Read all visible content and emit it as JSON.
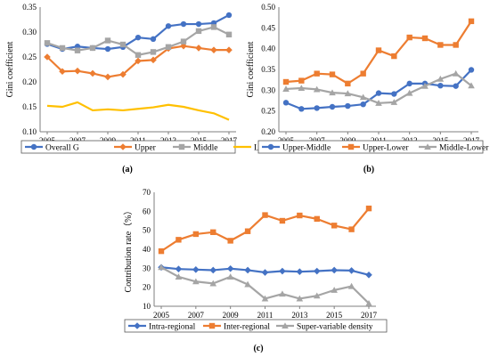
{
  "chart_data": [
    {
      "panel": "(a)",
      "type": "line",
      "ylabel": "Gini coefficient",
      "xlabel": "",
      "ylim": [
        0.1,
        0.35
      ],
      "yticks": [
        "0.10",
        "0.15",
        "0.20",
        "0.25",
        "0.30",
        "0.35"
      ],
      "xticks": [
        "2005",
        "2007",
        "2009",
        "2011",
        "2013",
        "2015",
        "2017"
      ],
      "x": [
        2005,
        2006,
        2007,
        2008,
        2009,
        2010,
        2011,
        2012,
        2013,
        2014,
        2015,
        2016,
        2017
      ],
      "grid": false,
      "legend_position": "bottom",
      "series": [
        {
          "name": "Overall G",
          "color": "#4472C4",
          "marker": "circle",
          "values": [
            0.276,
            0.266,
            0.271,
            0.268,
            0.266,
            0.27,
            0.289,
            0.286,
            0.312,
            0.316,
            0.316,
            0.318,
            0.334
          ]
        },
        {
          "name": "Upper",
          "color": "#ED7D31",
          "marker": "diamond",
          "values": [
            0.25,
            0.221,
            0.222,
            0.217,
            0.21,
            0.215,
            0.242,
            0.244,
            0.267,
            0.272,
            0.268,
            0.264,
            0.264
          ]
        },
        {
          "name": "Middle",
          "color": "#A5A5A5",
          "marker": "square",
          "values": [
            0.278,
            0.268,
            0.263,
            0.268,
            0.283,
            0.275,
            0.254,
            0.26,
            0.27,
            0.281,
            0.302,
            0.31,
            0.295
          ]
        },
        {
          "name": "Lower",
          "color": "#FFC000",
          "marker": "none",
          "values": [
            0.152,
            0.15,
            0.159,
            0.143,
            0.145,
            0.143,
            0.146,
            0.149,
            0.154,
            0.15,
            0.143,
            0.137,
            0.124
          ]
        }
      ]
    },
    {
      "panel": "(b)",
      "type": "line",
      "ylabel": "Gini coefficient",
      "xlabel": "",
      "ylim": [
        0.2,
        0.5
      ],
      "yticks": [
        "0.20",
        "0.25",
        "0.30",
        "0.35",
        "0.40",
        "0.45",
        "0.50"
      ],
      "xticks": [
        "2005",
        "2007",
        "2009",
        "2011",
        "2013",
        "2015",
        "2017"
      ],
      "x": [
        2005,
        2006,
        2007,
        2008,
        2009,
        2010,
        2011,
        2012,
        2013,
        2014,
        2015,
        2016,
        2017
      ],
      "grid": false,
      "legend_position": "bottom",
      "series": [
        {
          "name": "Upper-Middle",
          "color": "#4472C4",
          "marker": "circle",
          "values": [
            0.27,
            0.255,
            0.257,
            0.26,
            0.262,
            0.266,
            0.293,
            0.291,
            0.316,
            0.316,
            0.311,
            0.31,
            0.349
          ]
        },
        {
          "name": "Upper-Lower",
          "color": "#ED7D31",
          "marker": "square",
          "values": [
            0.32,
            0.323,
            0.34,
            0.338,
            0.316,
            0.34,
            0.396,
            0.382,
            0.427,
            0.425,
            0.409,
            0.409,
            0.466
          ]
        },
        {
          "name": "Middle-Lower",
          "color": "#A5A5A5",
          "marker": "triangle",
          "values": [
            0.303,
            0.305,
            0.302,
            0.294,
            0.292,
            0.283,
            0.269,
            0.271,
            0.293,
            0.31,
            0.327,
            0.34,
            0.311
          ]
        }
      ]
    },
    {
      "panel": "(c)",
      "type": "line",
      "ylabel": "Contribution rate（%）",
      "xlabel": "",
      "ylim": [
        10,
        70
      ],
      "yticks": [
        "10",
        "20",
        "30",
        "40",
        "50",
        "60",
        "70"
      ],
      "xticks": [
        "2005",
        "2007",
        "2009",
        "2011",
        "2013",
        "2015",
        "2017"
      ],
      "x": [
        2005,
        2006,
        2007,
        2008,
        2009,
        2010,
        2011,
        2012,
        2013,
        2014,
        2015,
        2016,
        2017
      ],
      "grid": false,
      "legend_position": "bottom",
      "series": [
        {
          "name": "Intra-regional",
          "color": "#4472C4",
          "marker": "diamond",
          "values": [
            30.5,
            29.6,
            29.3,
            29.0,
            29.8,
            29.0,
            27.8,
            28.5,
            28.2,
            28.5,
            29.0,
            28.8,
            26.5
          ]
        },
        {
          "name": "Inter-regional",
          "color": "#ED7D31",
          "marker": "square",
          "values": [
            39.0,
            45.0,
            48.0,
            49.0,
            44.5,
            49.5,
            58.0,
            55.0,
            57.8,
            56.0,
            52.5,
            50.5,
            61.5
          ]
        },
        {
          "name": "Super-variable density",
          "color": "#A5A5A5",
          "marker": "triangle",
          "values": [
            30.5,
            25.5,
            23.0,
            22.0,
            25.5,
            21.5,
            14.0,
            16.5,
            14.0,
            15.5,
            18.5,
            20.5,
            11.5
          ]
        }
      ]
    }
  ]
}
